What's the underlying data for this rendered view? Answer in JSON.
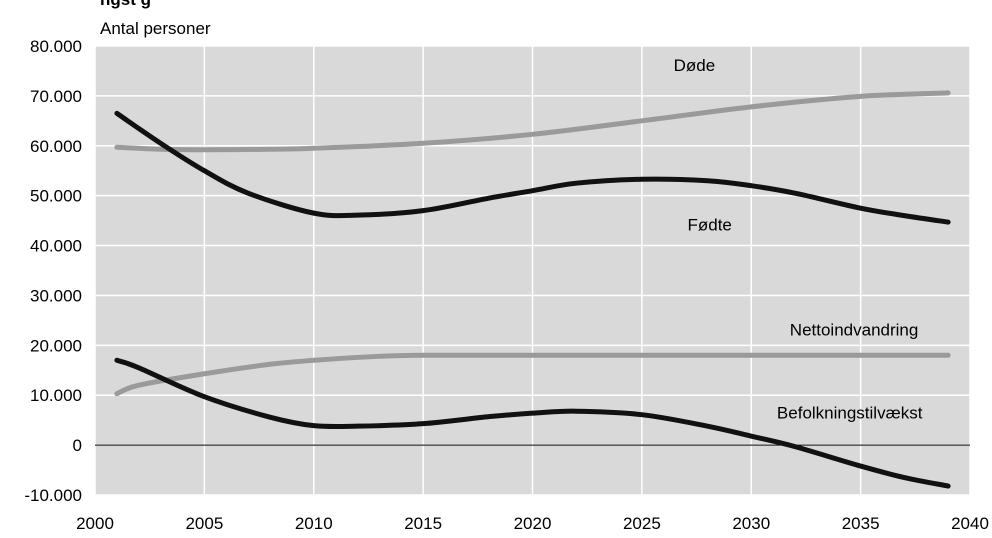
{
  "header": {
    "title_fragment": "ngst                    g"
  },
  "colors": {
    "plot_background": "#d9d9d9",
    "gridline": "#ffffff",
    "zero_line": "#000000",
    "black_series": "#111111",
    "gray_series": "#9a9a9a"
  },
  "chart_data": {
    "type": "line",
    "title": "",
    "xlabel": "",
    "ylabel": "Antal personer",
    "xlim": [
      2000,
      2040
    ],
    "ylim": [
      -10000,
      80000
    ],
    "x_ticks": [
      "2000",
      "2005",
      "2010",
      "2015",
      "2020",
      "2025",
      "2030",
      "2035",
      "2040"
    ],
    "y_ticks": [
      "80.000",
      "70.000",
      "60.000",
      "50.000",
      "40.000",
      "30.000",
      "20.000",
      "10.000",
      "0",
      "-10.000"
    ],
    "grid": true,
    "legend": "inline labels",
    "series": [
      {
        "name": "Døde",
        "color": "#9a9a9a",
        "x": [
          2001,
          2003,
          2005,
          2008,
          2010,
          2015,
          2020,
          2025,
          2030,
          2035,
          2039
        ],
        "values": [
          59700,
          59300,
          59200,
          59300,
          59500,
          60500,
          62300,
          65000,
          67800,
          69900,
          70600
        ]
      },
      {
        "name": "Fødte",
        "color": "#111111",
        "x": [
          2001,
          2003,
          2005,
          2007,
          2010,
          2012,
          2015,
          2018,
          2020,
          2022,
          2025,
          2028,
          2030,
          2032,
          2035,
          2037,
          2039
        ],
        "values": [
          66500,
          60500,
          55000,
          50500,
          46500,
          46100,
          47000,
          49500,
          51000,
          52500,
          53300,
          53000,
          52000,
          50500,
          47500,
          46000,
          44700
        ]
      },
      {
        "name": "Nettoindvandring",
        "color": "#9a9a9a",
        "x": [
          2001,
          2002,
          2005,
          2008,
          2010,
          2013,
          2015,
          2020,
          2025,
          2030,
          2035,
          2039
        ],
        "values": [
          10300,
          12000,
          14300,
          16200,
          17000,
          17800,
          18000,
          18000,
          18000,
          18000,
          18000,
          18000
        ]
      },
      {
        "name": "Befolkningstilvækst",
        "color": "#111111",
        "x": [
          2001,
          2002,
          2005,
          2008,
          2010,
          2012,
          2015,
          2018,
          2020,
          2022,
          2025,
          2028,
          2030,
          2032,
          2035,
          2037,
          2039
        ],
        "values": [
          17000,
          15500,
          9700,
          5600,
          3900,
          3800,
          4300,
          5700,
          6400,
          6800,
          6100,
          3800,
          1800,
          -300,
          -4200,
          -6500,
          -8200
        ]
      }
    ],
    "series_labels": [
      {
        "text": "Døde",
        "x": 2027.4,
        "y": 75000
      },
      {
        "text": "Fødte",
        "x": 2028.1,
        "y": 43000
      },
      {
        "text": "Nettoindvandring",
        "x": 2034.7,
        "y": 22000
      },
      {
        "text": "Befolkningstilvækst",
        "x": 2034.5,
        "y": 5300
      }
    ]
  }
}
